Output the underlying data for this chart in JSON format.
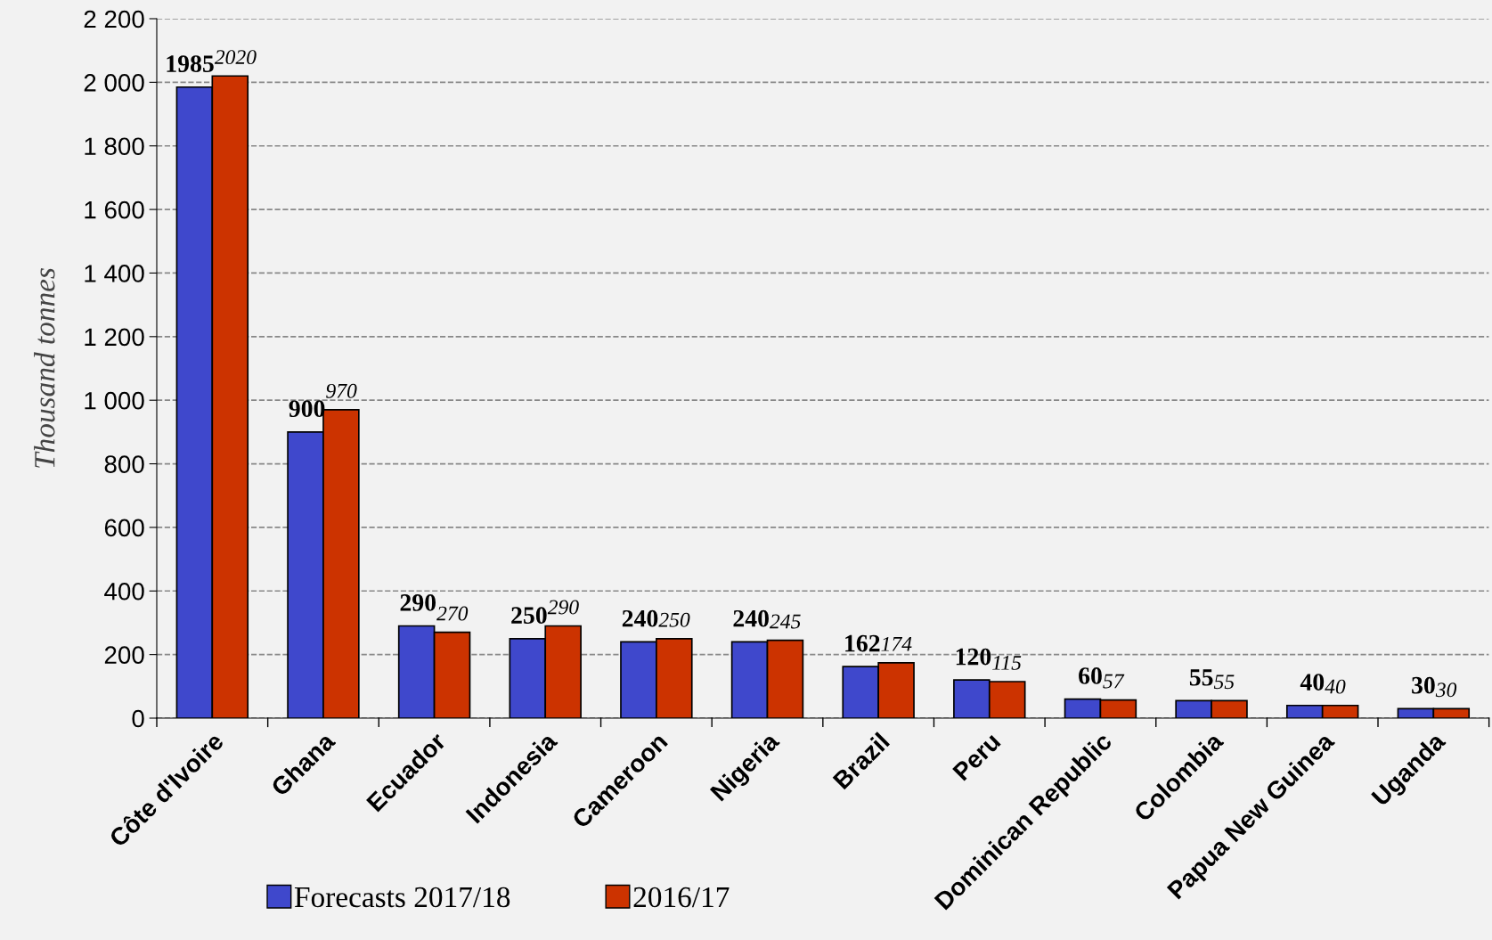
{
  "chart_data": {
    "type": "bar",
    "ylabel": "Thousand tonnes",
    "categories": [
      "Côte d'Ivoire",
      "Ghana",
      "Ecuador",
      "Indonesia",
      "Cameroon",
      "Nigeria",
      "Brazil",
      "Peru",
      "Dominican Republic",
      "Colombia",
      "Papua New Guinea",
      "Uganda"
    ],
    "series": [
      {
        "name": "Forecasts 2017/18",
        "color": "#3f48cc",
        "values": [
          1985,
          900,
          290,
          250,
          240,
          240,
          162,
          120,
          60,
          55,
          40,
          30
        ]
      },
      {
        "name": "2016/17",
        "color": "#cc3300",
        "values": [
          2020,
          970,
          270,
          290,
          250,
          245,
          174,
          115,
          57,
          55,
          40,
          30
        ]
      }
    ],
    "ylim": [
      0,
      2200
    ],
    "yticks": [
      0,
      200,
      400,
      600,
      800,
      {
        "value": 1000,
        "label": "1 000"
      },
      {
        "value": 1200,
        "label": "1 200"
      },
      {
        "value": 1400,
        "label": "1 400"
      },
      {
        "value": 1600,
        "label": "1 600"
      },
      {
        "value": 1800,
        "label": "1 800"
      },
      {
        "value": 2000,
        "label": "2 000"
      },
      {
        "value": 2200,
        "label": "2 200"
      }
    ],
    "grid": "y",
    "line_style": "dashed",
    "legend": "bottom left",
    "data_labels": true
  }
}
